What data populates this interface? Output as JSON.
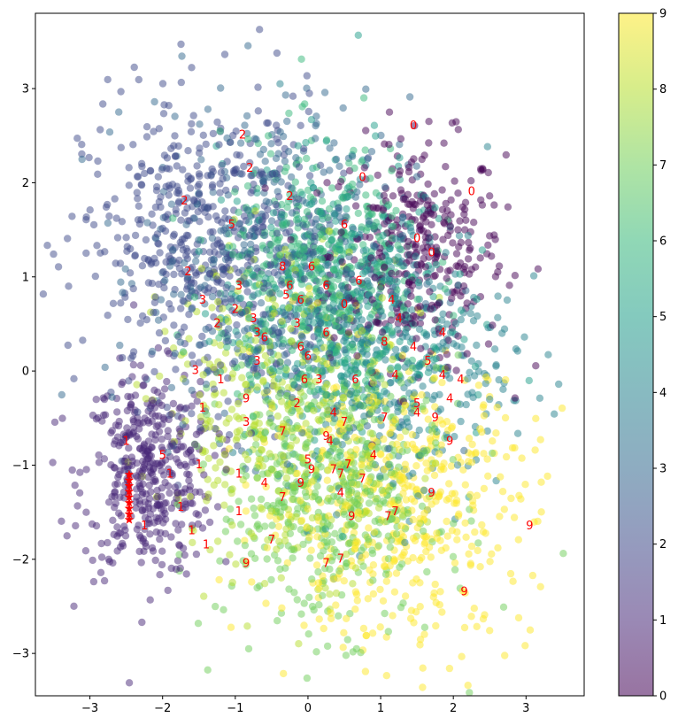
{
  "chart_data": {
    "type": "scatter",
    "title": "",
    "xlabel": "",
    "ylabel": "",
    "xlim": [
      -3.75,
      3.8
    ],
    "ylim": [
      -3.45,
      3.8
    ],
    "x_ticks": [
      -3,
      -2,
      -1,
      0,
      1,
      2,
      3
    ],
    "y_ticks": [
      -3,
      -2,
      -1,
      0,
      1,
      2,
      3
    ],
    "grid": false,
    "point_alpha": 0.5,
    "colormap": "viridis",
    "colormap_stops": [
      "#440154",
      "#482878",
      "#3e4989",
      "#31688e",
      "#26828e",
      "#1f9e89",
      "#35b779",
      "#6ece58",
      "#b5de2b",
      "#fde725"
    ],
    "colorbar": {
      "min": 0,
      "max": 9,
      "ticks": [
        0,
        1,
        2,
        3,
        4,
        5,
        6,
        7,
        8,
        9
      ]
    },
    "clusters": [
      {
        "class": 0,
        "center": [
          1.5,
          1.25
        ],
        "spread": [
          0.6,
          0.6
        ],
        "count": 360
      },
      {
        "class": 1,
        "center": [
          -2.2,
          -1.1
        ],
        "spread": [
          0.45,
          0.55
        ],
        "count": 420
      },
      {
        "class": 2,
        "center": [
          -1.4,
          1.3
        ],
        "spread": [
          0.85,
          0.8
        ],
        "count": 560
      },
      {
        "class": 3,
        "center": [
          -0.4,
          1.1
        ],
        "spread": [
          0.9,
          0.9
        ],
        "count": 460
      },
      {
        "class": 4,
        "center": [
          1.2,
          0.2
        ],
        "spread": [
          0.8,
          0.8
        ],
        "count": 380
      },
      {
        "class": 5,
        "center": [
          0.4,
          0.7
        ],
        "spread": [
          0.8,
          0.8
        ],
        "count": 380
      },
      {
        "class": 6,
        "center": [
          0.2,
          1.0
        ],
        "spread": [
          0.7,
          0.7
        ],
        "count": 460
      },
      {
        "class": 7,
        "center": [
          0.3,
          -1.3
        ],
        "spread": [
          0.75,
          0.7
        ],
        "count": 520
      },
      {
        "class": 8,
        "center": [
          -0.3,
          -0.4
        ],
        "spread": [
          0.85,
          0.85
        ],
        "count": 420
      },
      {
        "class": 9,
        "center": [
          1.2,
          -1.4
        ],
        "spread": [
          0.95,
          0.75
        ],
        "count": 520
      }
    ],
    "red_markers": {
      "color": "#ff0000",
      "marker": "*",
      "points": [
        [
          -2.46,
          -1.1
        ],
        [
          -2.46,
          -1.16
        ],
        [
          -2.46,
          -1.22
        ],
        [
          -2.46,
          -1.28
        ],
        [
          -2.46,
          -1.34
        ],
        [
          -2.46,
          -1.4
        ],
        [
          -2.46,
          -1.46
        ],
        [
          -2.46,
          -1.52
        ],
        [
          -2.46,
          -1.58
        ]
      ]
    },
    "digit_labels": [
      {
        "x": -0.95,
        "y": 2.5,
        "label": "2"
      },
      {
        "x": -0.85,
        "y": 2.15,
        "label": "2"
      },
      {
        "x": -1.75,
        "y": 1.8,
        "label": "2"
      },
      {
        "x": -1.1,
        "y": 1.55,
        "label": "5"
      },
      {
        "x": -0.3,
        "y": 1.85,
        "label": "2"
      },
      {
        "x": -1.7,
        "y": 1.05,
        "label": "2"
      },
      {
        "x": -1.5,
        "y": 0.75,
        "label": "3"
      },
      {
        "x": -1.0,
        "y": 0.9,
        "label": "3"
      },
      {
        "x": -1.05,
        "y": 0.65,
        "label": "2"
      },
      {
        "x": -0.8,
        "y": 0.55,
        "label": "3"
      },
      {
        "x": -1.3,
        "y": 0.5,
        "label": "2"
      },
      {
        "x": -0.75,
        "y": 0.4,
        "label": "3"
      },
      {
        "x": -0.65,
        "y": 0.35,
        "label": "6"
      },
      {
        "x": -0.75,
        "y": 0.1,
        "label": "3"
      },
      {
        "x": -1.6,
        "y": 0.0,
        "label": "3"
      },
      {
        "x": -1.25,
        "y": -0.1,
        "label": "1"
      },
      {
        "x": -0.9,
        "y": -0.3,
        "label": "9"
      },
      {
        "x": -1.5,
        "y": -0.4,
        "label": "1"
      },
      {
        "x": -0.9,
        "y": -0.55,
        "label": "3"
      },
      {
        "x": -0.4,
        "y": 1.1,
        "label": "8"
      },
      {
        "x": -0.3,
        "y": 0.9,
        "label": "6"
      },
      {
        "x": -0.35,
        "y": 0.8,
        "label": "5"
      },
      {
        "x": -0.15,
        "y": 0.75,
        "label": "6"
      },
      {
        "x": 0.0,
        "y": 1.1,
        "label": "6"
      },
      {
        "x": 0.2,
        "y": 0.9,
        "label": "6"
      },
      {
        "x": 0.45,
        "y": 1.55,
        "label": "6"
      },
      {
        "x": 0.65,
        "y": 0.95,
        "label": "6"
      },
      {
        "x": 0.45,
        "y": 0.7,
        "label": "0"
      },
      {
        "x": -0.2,
        "y": 0.5,
        "label": "3"
      },
      {
        "x": 0.2,
        "y": 0.4,
        "label": "6"
      },
      {
        "x": -0.15,
        "y": 0.25,
        "label": "6"
      },
      {
        "x": -0.05,
        "y": 0.15,
        "label": "6"
      },
      {
        "x": -0.1,
        "y": -0.1,
        "label": "6"
      },
      {
        "x": 0.1,
        "y": -0.1,
        "label": "3"
      },
      {
        "x": 0.6,
        "y": -0.1,
        "label": "6"
      },
      {
        "x": -0.2,
        "y": -0.35,
        "label": "2"
      },
      {
        "x": 0.3,
        "y": -0.45,
        "label": "4"
      },
      {
        "x": 0.45,
        "y": -0.55,
        "label": "7"
      },
      {
        "x": 1.0,
        "y": -0.5,
        "label": "7"
      },
      {
        "x": 0.7,
        "y": 2.05,
        "label": "0"
      },
      {
        "x": 1.4,
        "y": 2.6,
        "label": "0"
      },
      {
        "x": 1.45,
        "y": 1.4,
        "label": "0"
      },
      {
        "x": 1.65,
        "y": 1.25,
        "label": "0"
      },
      {
        "x": 2.2,
        "y": 1.9,
        "label": "0"
      },
      {
        "x": 1.1,
        "y": 0.75,
        "label": "4"
      },
      {
        "x": 1.2,
        "y": 0.55,
        "label": "4"
      },
      {
        "x": 1.0,
        "y": 0.3,
        "label": "8"
      },
      {
        "x": 1.4,
        "y": 0.25,
        "label": "4"
      },
      {
        "x": 1.6,
        "y": 0.1,
        "label": "5"
      },
      {
        "x": 1.8,
        "y": 0.4,
        "label": "4"
      },
      {
        "x": 1.15,
        "y": -0.05,
        "label": "4"
      },
      {
        "x": 1.8,
        "y": -0.05,
        "label": "4"
      },
      {
        "x": 2.05,
        "y": -0.1,
        "label": "4"
      },
      {
        "x": 1.45,
        "y": -0.35,
        "label": "5"
      },
      {
        "x": 1.45,
        "y": -0.45,
        "label": "4"
      },
      {
        "x": 1.7,
        "y": -0.5,
        "label": "9"
      },
      {
        "x": 1.9,
        "y": -0.3,
        "label": "4"
      },
      {
        "x": 1.9,
        "y": -0.75,
        "label": "9"
      },
      {
        "x": -2.55,
        "y": -0.75,
        "label": "1"
      },
      {
        "x": -2.05,
        "y": -0.9,
        "label": "5"
      },
      {
        "x": -1.95,
        "y": -1.1,
        "label": "1"
      },
      {
        "x": -1.55,
        "y": -1.0,
        "label": "1"
      },
      {
        "x": -1.8,
        "y": -1.45,
        "label": "1"
      },
      {
        "x": -1.65,
        "y": -1.7,
        "label": "1"
      },
      {
        "x": -1.45,
        "y": -1.85,
        "label": "1"
      },
      {
        "x": -2.3,
        "y": -1.65,
        "label": "1"
      },
      {
        "x": -1.0,
        "y": -1.1,
        "label": "1"
      },
      {
        "x": -1.0,
        "y": -1.5,
        "label": "1"
      },
      {
        "x": -0.65,
        "y": -1.2,
        "label": "4"
      },
      {
        "x": -0.4,
        "y": -0.65,
        "label": "7"
      },
      {
        "x": 0.2,
        "y": -0.7,
        "label": "9"
      },
      {
        "x": 0.25,
        "y": -0.75,
        "label": "4"
      },
      {
        "x": -0.05,
        "y": -0.95,
        "label": "5"
      },
      {
        "x": 0.0,
        "y": -1.05,
        "label": "9"
      },
      {
        "x": 0.3,
        "y": -1.05,
        "label": "7"
      },
      {
        "x": 0.4,
        "y": -1.1,
        "label": "7"
      },
      {
        "x": 0.5,
        "y": -1.0,
        "label": "7"
      },
      {
        "x": 0.7,
        "y": -1.15,
        "label": "7"
      },
      {
        "x": 0.85,
        "y": -0.9,
        "label": "4"
      },
      {
        "x": -0.15,
        "y": -1.2,
        "label": "9"
      },
      {
        "x": 0.4,
        "y": -1.3,
        "label": "4"
      },
      {
        "x": -0.4,
        "y": -1.35,
        "label": "7"
      },
      {
        "x": 0.55,
        "y": -1.55,
        "label": "9"
      },
      {
        "x": 1.05,
        "y": -1.55,
        "label": "7"
      },
      {
        "x": 1.15,
        "y": -1.5,
        "label": "7"
      },
      {
        "x": 1.65,
        "y": -1.3,
        "label": "9"
      },
      {
        "x": -0.55,
        "y": -1.8,
        "label": "7"
      },
      {
        "x": -0.9,
        "y": -2.05,
        "label": "9"
      },
      {
        "x": 0.2,
        "y": -2.05,
        "label": "7"
      },
      {
        "x": 0.4,
        "y": -2.0,
        "label": "7"
      },
      {
        "x": 3.0,
        "y": -1.65,
        "label": "9"
      },
      {
        "x": 2.1,
        "y": -2.35,
        "label": "9"
      }
    ]
  }
}
